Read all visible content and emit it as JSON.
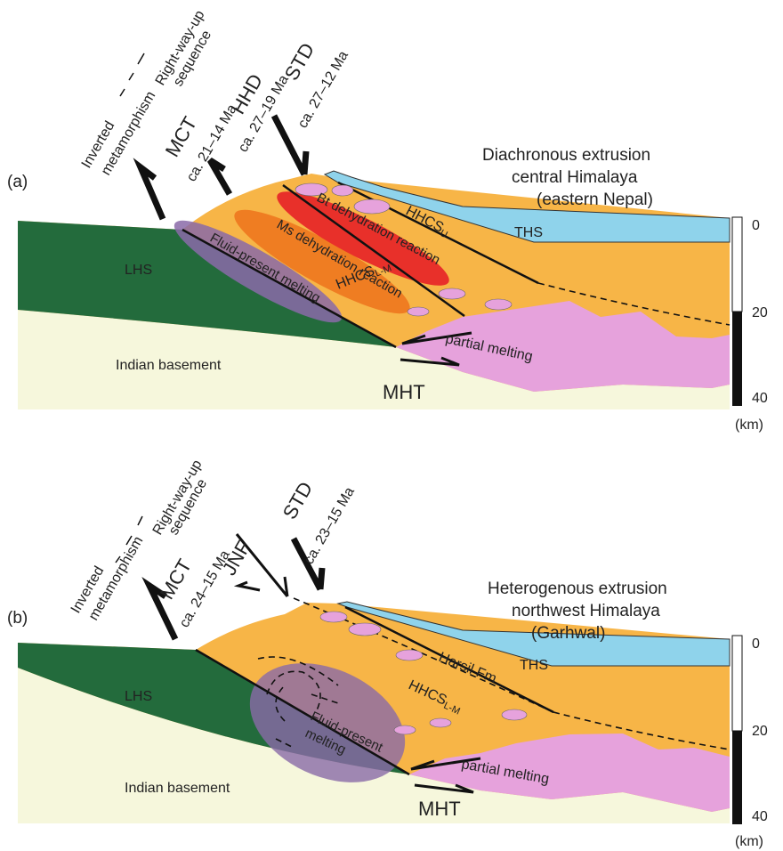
{
  "panels": [
    {
      "label": "(a)",
      "title": [
        "Diachronous extrusion",
        "central Himalaya",
        "(eastern Nepal)"
      ],
      "sequence": {
        "lower": [
          "Inverted",
          "metamorphism"
        ],
        "upper": [
          "Right-way-up",
          "sequence"
        ]
      },
      "faults": [
        {
          "name": "MCT",
          "age": "ca. 21–14 Ma"
        },
        {
          "name": "HHD",
          "age": "ca. 27–19 Ma"
        },
        {
          "name": "STD",
          "age": "ca. 27–12 Ma"
        }
      ],
      "units": {
        "lhs": "LHS",
        "basement": "Indian basement",
        "ths": "THS",
        "hhcs_upper": {
          "text": "HHCS",
          "sub": "U"
        },
        "hhcs_lower": {
          "text": "HHCS",
          "sub": "L-M"
        }
      },
      "processes": {
        "bt": "Bt dehydration reaction",
        "ms": "Ms dehydration reaction",
        "fluid": [
          "Fluid-present melting"
        ],
        "partial": "partial melting"
      },
      "shear_zone": "MHT",
      "scale": {
        "ticks": [
          0,
          20,
          40
        ],
        "unit": "(km)"
      }
    },
    {
      "label": "(b)",
      "title": [
        "Heterogenous extrusion",
        "northwest Himalaya",
        "(Garhwal)"
      ],
      "sequence": {
        "lower": [
          "Inverted",
          "metamorphism"
        ],
        "upper": [
          "Right-way-up",
          "sequence"
        ]
      },
      "faults": [
        {
          "name": "MCT",
          "age": "ca. 24–15 Ma"
        },
        {
          "name": "JNF"
        },
        {
          "name": "STD",
          "age": "ca. 23–15 Ma"
        }
      ],
      "units": {
        "lhs": "LHS",
        "basement": "Indian basement",
        "ths": "THS",
        "harsil": "Harsil Fm",
        "hhcs_lower": {
          "text": "HHCS",
          "sub": "L-M"
        }
      },
      "processes": {
        "fluid": [
          "Fluid-present",
          "melting"
        ],
        "partial": "partial melting"
      },
      "shear_zone": "MHT",
      "scale": {
        "ticks": [
          0,
          20,
          40
        ],
        "unit": "(km)"
      }
    }
  ]
}
